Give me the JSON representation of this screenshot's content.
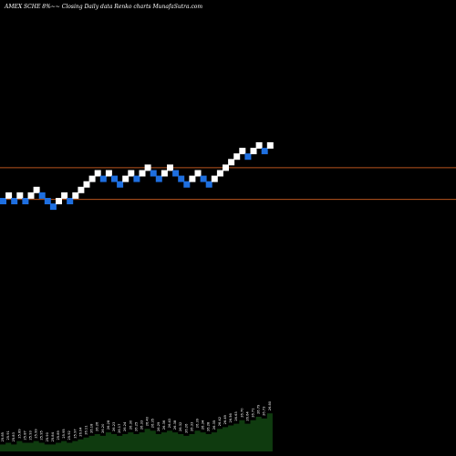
{
  "header": {
    "title": "AMEX  SCHE  8%~~ Closing Daily data  Renko  charts MunafaSutra.com"
  },
  "colors": {
    "background": "#000000",
    "up_brick": "#ffffff",
    "down_brick": "#1e6fe0",
    "ref_line": "#b8541e",
    "volume_fill": "#0f3b0f"
  },
  "chart_data": {
    "type": "renko",
    "title": "AMEX  SCHE  8%~~ Closing Daily data  Renko  charts MunafaSutra.com",
    "grid": false,
    "bricks": [
      {
        "dir": "down",
        "level": 0
      },
      {
        "dir": "up",
        "level": 1
      },
      {
        "dir": "down",
        "level": 0
      },
      {
        "dir": "up",
        "level": 1
      },
      {
        "dir": "down",
        "level": 0
      },
      {
        "dir": "up",
        "level": 1
      },
      {
        "dir": "up",
        "level": 2
      },
      {
        "dir": "down",
        "level": 1
      },
      {
        "dir": "down",
        "level": 0
      },
      {
        "dir": "down",
        "level": -1
      },
      {
        "dir": "up",
        "level": 0
      },
      {
        "dir": "up",
        "level": 1
      },
      {
        "dir": "down",
        "level": 0
      },
      {
        "dir": "up",
        "level": 1
      },
      {
        "dir": "up",
        "level": 2
      },
      {
        "dir": "up",
        "level": 3
      },
      {
        "dir": "up",
        "level": 4
      },
      {
        "dir": "up",
        "level": 5
      },
      {
        "dir": "down",
        "level": 4
      },
      {
        "dir": "up",
        "level": 5
      },
      {
        "dir": "down",
        "level": 4
      },
      {
        "dir": "down",
        "level": 3
      },
      {
        "dir": "up",
        "level": 4
      },
      {
        "dir": "up",
        "level": 5
      },
      {
        "dir": "down",
        "level": 4
      },
      {
        "dir": "up",
        "level": 5
      },
      {
        "dir": "up",
        "level": 6
      },
      {
        "dir": "down",
        "level": 5
      },
      {
        "dir": "down",
        "level": 4
      },
      {
        "dir": "up",
        "level": 5
      },
      {
        "dir": "up",
        "level": 6
      },
      {
        "dir": "down",
        "level": 5
      },
      {
        "dir": "down",
        "level": 4
      },
      {
        "dir": "down",
        "level": 3
      },
      {
        "dir": "up",
        "level": 4
      },
      {
        "dir": "up",
        "level": 5
      },
      {
        "dir": "down",
        "level": 4
      },
      {
        "dir": "down",
        "level": 3
      },
      {
        "dir": "up",
        "level": 4
      },
      {
        "dir": "up",
        "level": 5
      },
      {
        "dir": "up",
        "level": 6
      },
      {
        "dir": "up",
        "level": 7
      },
      {
        "dir": "up",
        "level": 8
      },
      {
        "dir": "up",
        "level": 9
      },
      {
        "dir": "down",
        "level": 8
      },
      {
        "dir": "up",
        "level": 9
      },
      {
        "dir": "up",
        "level": 10
      },
      {
        "dir": "down",
        "level": 9
      },
      {
        "dir": "up",
        "level": 10
      }
    ],
    "reference_lines": [
      {
        "level": 6.0
      },
      {
        "level": 0.3
      }
    ],
    "volume_labels": [
      "25.85",
      "25.91",
      "25.83",
      "25.89",
      "25.87",
      "25.93",
      "25.99",
      "25.95",
      "25.90",
      "25.84",
      "25.89",
      "25.95",
      "25.92",
      "25.97",
      "26.04",
      "26.11",
      "26.18",
      "26.26",
      "26.20",
      "26.28",
      "26.23",
      "26.17",
      "26.24",
      "26.30",
      "26.25",
      "26.33",
      "26.40",
      "26.35",
      "26.29",
      "26.36",
      "26.43",
      "26.38",
      "26.32",
      "26.26",
      "26.33",
      "26.39",
      "26.34",
      "26.28",
      "26.35",
      "26.42",
      "26.49",
      "26.56",
      "26.63",
      "26.70",
      "26.64",
      "26.71",
      "26.79",
      "26.73",
      "26.80"
    ],
    "volume_values": [
      4,
      5,
      4,
      6,
      5,
      5,
      6,
      5,
      4,
      4,
      5,
      6,
      5,
      6,
      7,
      8,
      9,
      10,
      9,
      11,
      10,
      9,
      10,
      11,
      10,
      11,
      13,
      12,
      10,
      11,
      12,
      11,
      10,
      9,
      10,
      12,
      11,
      10,
      11,
      13,
      14,
      15,
      16,
      18,
      16,
      18,
      20,
      19,
      22
    ]
  }
}
